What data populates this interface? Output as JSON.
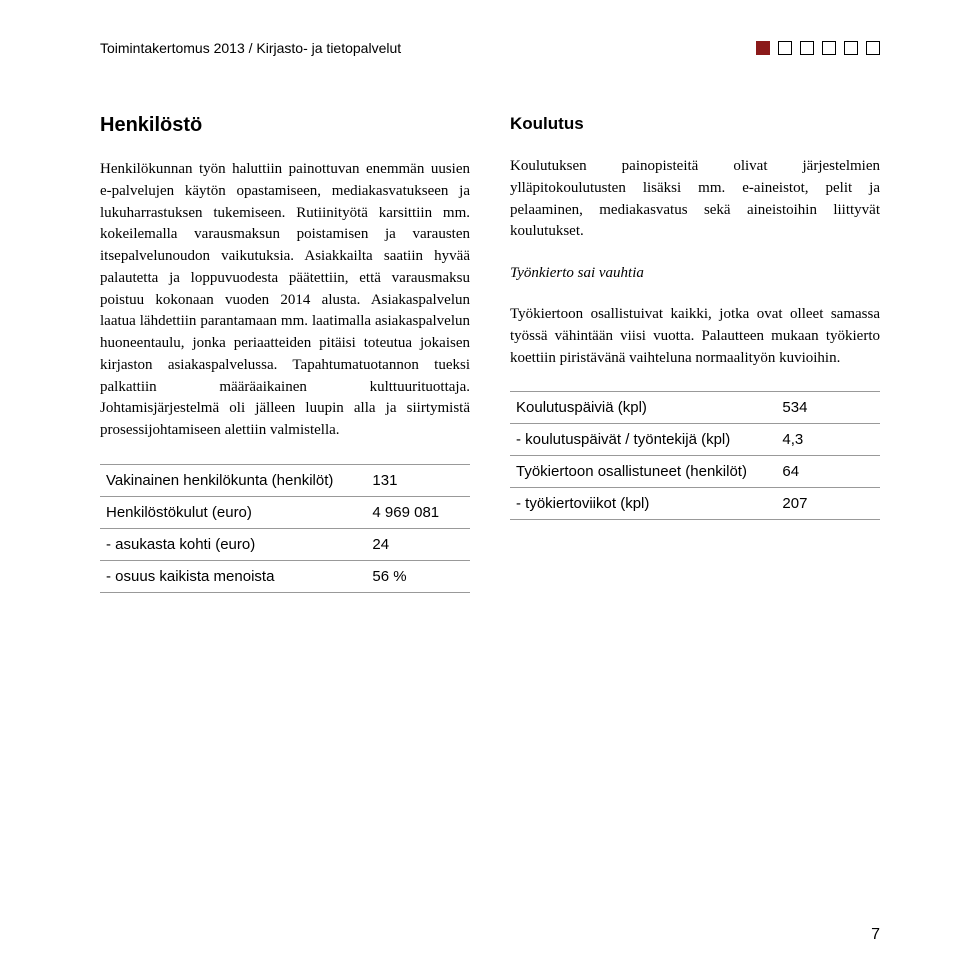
{
  "header": {
    "title": "Toimintakertomus 2013 / Kirjasto- ja tietopalvelut"
  },
  "left": {
    "heading": "Henkilöstö",
    "paragraph": "Henkilökunnan työn haluttiin painottuvan enemmän uusien e-palvelujen käytön opastamiseen, mediakasvatukseen ja lukuharrastuksen tukemiseen. Rutiinityötä karsittiin mm. kokeilemalla varausmaksun poistamisen ja varausten itsepalvelunoudon vaikutuksia. Asiakkailta saatiin hyvää palautetta ja loppuvuodesta päätettiin, että varausmaksu poistuu kokonaan vuoden 2014 alusta. Asiakaspalvelun laatua lähdettiin parantamaan mm. laatimalla asiakaspalvelun huoneentaulu, jonka periaatteiden pitäisi toteutua jokaisen kirjaston asiakaspalvelussa. Tapahtumatuotannon tueksi palkattiin määräaikainen kulttuurituottaja. Johtamisjärjestelmä oli jälleen luupin alla ja siirtymistä prosessijohtamiseen alettiin valmistella.",
    "table": [
      {
        "label": "Vakinainen henkilökunta (henkilöt)",
        "value": "131"
      },
      {
        "label": "Henkilöstökulut (euro)",
        "value": "4 969 081"
      },
      {
        "label": "- asukasta kohti (euro)",
        "value": "24"
      },
      {
        "label": " - osuus kaikista menoista",
        "value": "56 %"
      }
    ]
  },
  "right": {
    "heading": "Koulutus",
    "paragraph1": "Koulutuksen painopisteitä olivat järjestelmien ylläpitokoulutusten lisäksi mm. e-aineistot, pelit ja pelaaminen, mediakasvatus sekä aineistoihin liittyvät koulutukset.",
    "subhead": "Työnkierto sai vauhtia",
    "paragraph2": "Työkiertoon osallistuivat kaikki, jotka ovat olleet samassa työssä vähintään viisi vuotta. Palautteen mukaan työkierto koettiin piristävänä vaihteluna normaalityön kuvioihin.",
    "table": [
      {
        "label": "Koulutuspäiviä (kpl)",
        "value": "534"
      },
      {
        "label": "- koulutuspäivät / työntekijä (kpl)",
        "value": "4,3"
      },
      {
        "label": "Työkiertoon osallistuneet (henkilöt)",
        "value": "64"
      },
      {
        "label": " - työkiertoviikot (kpl)",
        "value": "207"
      }
    ]
  },
  "pagenum": "7"
}
